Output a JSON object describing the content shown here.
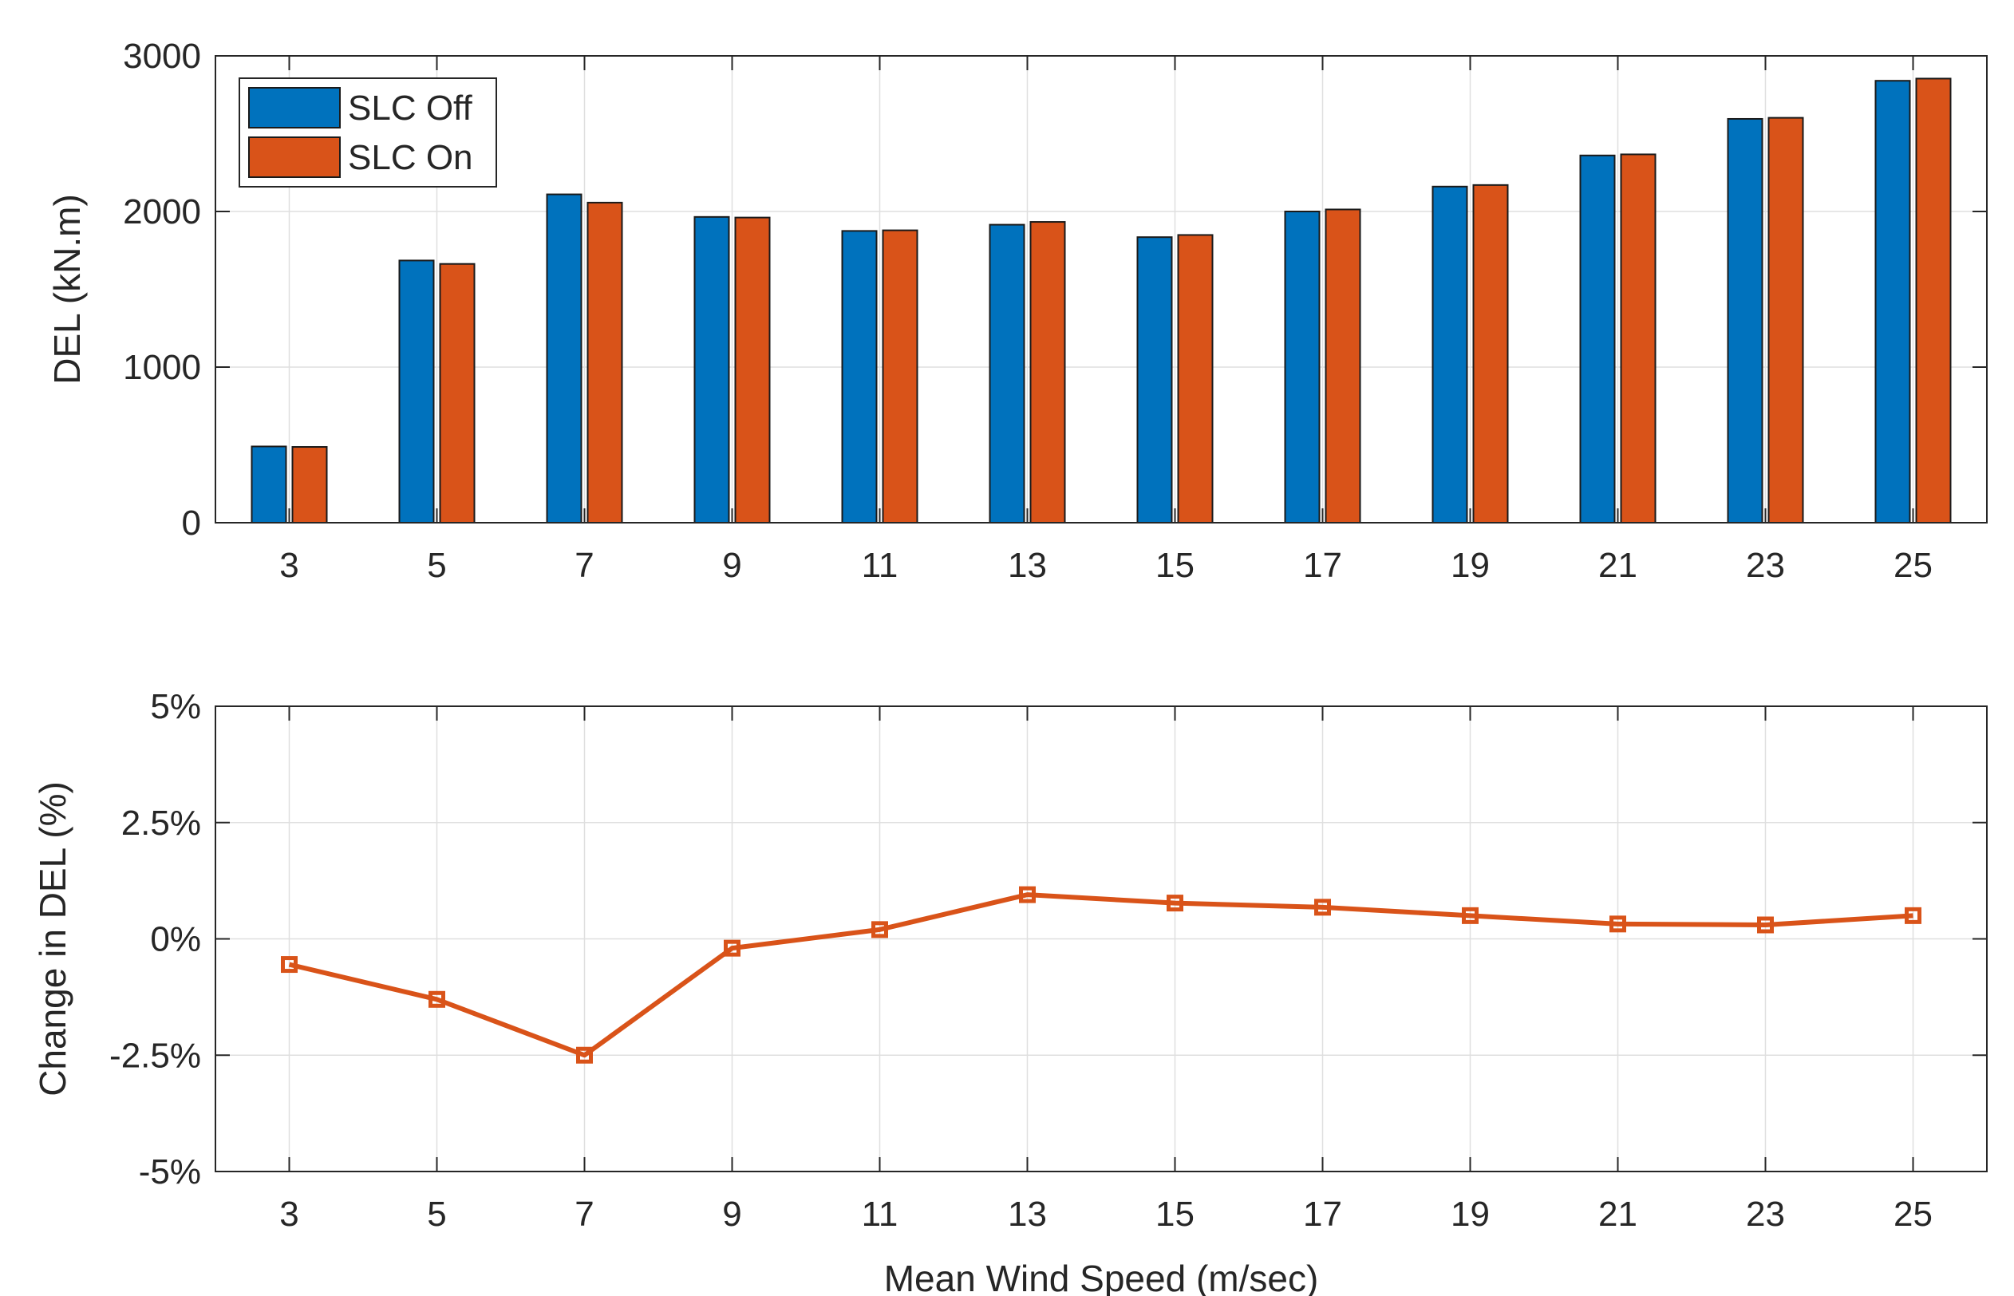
{
  "chart_data": [
    {
      "type": "bar",
      "title": "",
      "xlabel": "",
      "ylabel": "DEL (kN.m)",
      "categories": [
        "3",
        "5",
        "7",
        "9",
        "11",
        "13",
        "15",
        "17",
        "19",
        "21",
        "23",
        "25"
      ],
      "ylim": [
        0,
        3000
      ],
      "yticks": [
        0,
        1000,
        2000,
        3000
      ],
      "ytick_labels": [
        "0",
        "1000",
        "2000",
        "3000"
      ],
      "grid": true,
      "legend": "top-left",
      "series": [
        {
          "name": "SLC Off",
          "color": "#0072BD",
          "values": [
            490,
            1685,
            2110,
            1965,
            1875,
            1915,
            1835,
            2000,
            2160,
            2360,
            2595,
            2840
          ]
        },
        {
          "name": "SLC On",
          "color": "#D95319",
          "values": [
            487,
            1663,
            2057,
            1961,
            1879,
            1933,
            1849,
            2013,
            2170,
            2367,
            2602,
            2854
          ]
        }
      ]
    },
    {
      "type": "line",
      "title": "",
      "xlabel": "Mean Wind Speed (m/sec)",
      "ylabel": "Change in DEL (%)",
      "categories": [
        "3",
        "5",
        "7",
        "9",
        "11",
        "13",
        "15",
        "17",
        "19",
        "21",
        "23",
        "25"
      ],
      "ylim": [
        -5,
        5
      ],
      "yticks": [
        -5,
        -2.5,
        0,
        2.5,
        5
      ],
      "ytick_labels": [
        "-5%",
        "-2.5%",
        "0%",
        "2.5%",
        "5%"
      ],
      "grid": true,
      "series": [
        {
          "name": "Change in DEL",
          "color": "#D95319",
          "marker": "square",
          "values": [
            -0.55,
            -1.3,
            -2.5,
            -0.2,
            0.2,
            0.95,
            0.77,
            0.68,
            0.5,
            0.32,
            0.3,
            0.5
          ]
        }
      ]
    }
  ]
}
